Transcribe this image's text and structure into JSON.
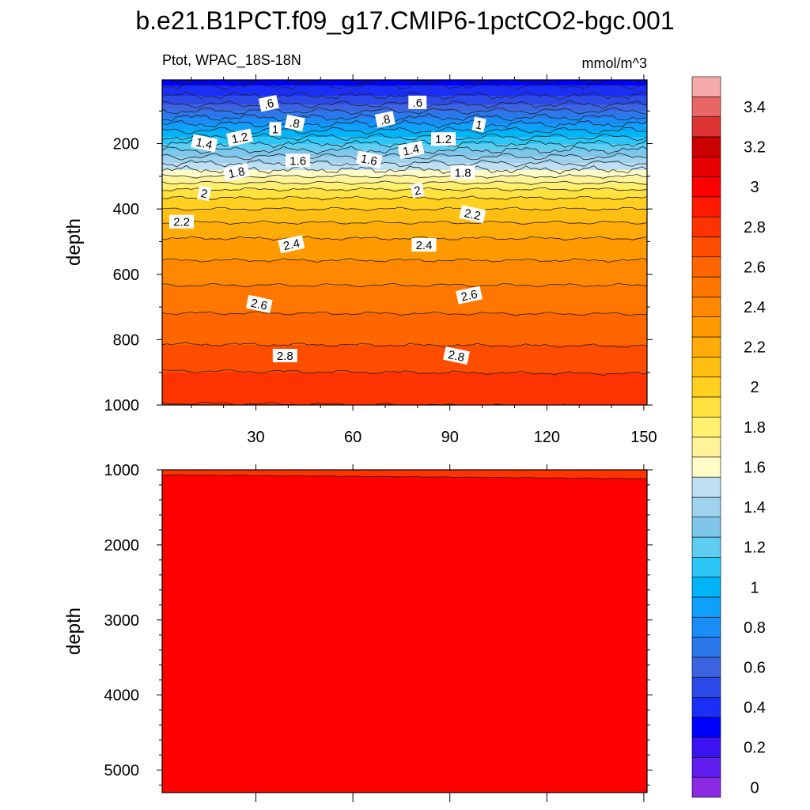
{
  "title": "b.e21.B1PCT.f09_g17.CMIP6-1pctCO2-bgc.001",
  "chart_data": [
    {
      "type": "contour",
      "panel": "upper",
      "left_label": "Ptot, WPAC_18S-18N",
      "right_label": "mmol/m^3",
      "ylabel": "depth",
      "xlim": [
        1,
        151
      ],
      "ylim": [
        1000,
        5
      ],
      "x_ticks": [
        "30",
        "60",
        "90",
        "120",
        "150"
      ],
      "y_ticks": [
        "200",
        "400",
        "600",
        "800",
        "1000"
      ],
      "profile": {
        "depth": [
          5,
          40,
          80,
          120,
          160,
          200,
          240,
          280,
          300,
          350,
          400,
          450,
          500,
          600,
          700,
          800,
          900,
          1000
        ],
        "value": [
          0.35,
          0.45,
          0.6,
          0.8,
          1.0,
          1.2,
          1.4,
          1.6,
          1.7,
          1.95,
          2.1,
          2.22,
          2.32,
          2.46,
          2.58,
          2.68,
          2.8,
          2.86
        ]
      },
      "contour_labels": [
        {
          "text": ".6",
          "x": 34,
          "y": 78
        },
        {
          "text": ".6",
          "x": 80,
          "y": 75
        },
        {
          "text": ".8",
          "x": 42,
          "y": 138
        },
        {
          "text": ".8",
          "x": 70,
          "y": 127
        },
        {
          "text": "1",
          "x": 36,
          "y": 156
        },
        {
          "text": "1",
          "x": 99,
          "y": 143
        },
        {
          "text": "1.2",
          "x": 25,
          "y": 183
        },
        {
          "text": "1.2",
          "x": 88,
          "y": 187
        },
        {
          "text": "1.4",
          "x": 14,
          "y": 200
        },
        {
          "text": "1.4",
          "x": 78,
          "y": 220
        },
        {
          "text": "1.6",
          "x": 43,
          "y": 253
        },
        {
          "text": "1.6",
          "x": 65,
          "y": 250
        },
        {
          "text": "1.8",
          "x": 24,
          "y": 289
        },
        {
          "text": "1.8",
          "x": 94,
          "y": 289
        },
        {
          "text": "2",
          "x": 14,
          "y": 353
        },
        {
          "text": "2",
          "x": 80,
          "y": 344
        },
        {
          "text": "2.2",
          "x": 7,
          "y": 440
        },
        {
          "text": "2.2",
          "x": 97,
          "y": 417
        },
        {
          "text": "2.4",
          "x": 41,
          "y": 509
        },
        {
          "text": "2.4",
          "x": 82,
          "y": 511
        },
        {
          "text": "2.6",
          "x": 31,
          "y": 692
        },
        {
          "text": "2.6",
          "x": 96,
          "y": 665
        },
        {
          "text": "2.8",
          "x": 39,
          "y": 850
        },
        {
          "text": "2.8",
          "x": 92,
          "y": 850
        }
      ]
    },
    {
      "type": "contour",
      "panel": "lower",
      "ylabel": "depth",
      "xlim": [
        1,
        151
      ],
      "ylim": [
        5300,
        1000
      ],
      "y_ticks": [
        "1000",
        "2000",
        "3000",
        "4000",
        "5000"
      ],
      "value_range": [
        2.8,
        3.0
      ],
      "contour_level": 2.8
    }
  ],
  "colorbar": {
    "labels": [
      "3.4",
      "3.2",
      "3",
      "2.8",
      "2.6",
      "2.4",
      "2.2",
      "2",
      "1.8",
      "1.6",
      "1.4",
      "1.2",
      "1",
      "0.8",
      "0.6",
      "0.4",
      "0.2",
      "0"
    ],
    "colors": [
      "#8a2be2",
      "#5f1df0",
      "#3a13f0",
      "#0000ff",
      "#1b2ef5",
      "#2c4ae8",
      "#3d63e0",
      "#2a78ec",
      "#1a8cf5",
      "#0ea0fa",
      "#00b4f8",
      "#2bc6f5",
      "#5ecdf1",
      "#7fc6ea",
      "#9ed2ee",
      "#bfe0f2",
      "#fffcc8",
      "#fff39a",
      "#fff070",
      "#ffe140",
      "#ffd020",
      "#ffbe12",
      "#ffac08",
      "#ff9a00",
      "#ff8800",
      "#ff7700",
      "#ff6600",
      "#ff4d00",
      "#ff3300",
      "#ff1a00",
      "#ff0000",
      "#e60000",
      "#cc0000",
      "#dd3333",
      "#e86666",
      "#f5aaaa"
    ]
  }
}
